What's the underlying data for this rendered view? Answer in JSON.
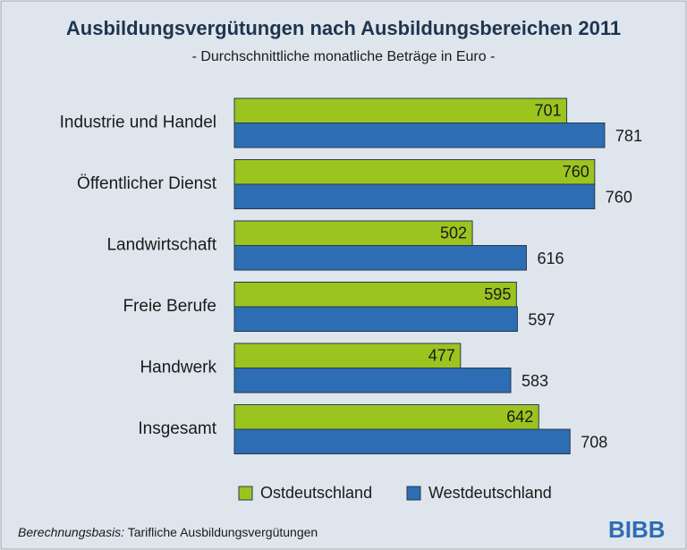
{
  "chart_data": {
    "type": "hbar",
    "title": "Ausbildungsvergütungen nach Ausbildungsbereichen 2011",
    "subtitle": "- Durchschnittliche monatliche Beträge in Euro -",
    "categories": [
      "Industrie und Handel",
      "Öffentlicher Dienst",
      "Landwirtschaft",
      "Freie Berufe",
      "Handwerk",
      "Insgesamt"
    ],
    "series": [
      {
        "name": "Ostdeutschland",
        "color": "#9bc41f",
        "values": [
          701,
          760,
          502,
          595,
          477,
          642
        ]
      },
      {
        "name": "Westdeutschland",
        "color": "#2c6db4",
        "values": [
          781,
          760,
          616,
          597,
          583,
          708
        ]
      }
    ],
    "legend": "bottom",
    "note_label": "Berechnungsbasis:",
    "note_text": "Tarifliche Ausbildungsvergütungen",
    "logo": "BIBB"
  }
}
